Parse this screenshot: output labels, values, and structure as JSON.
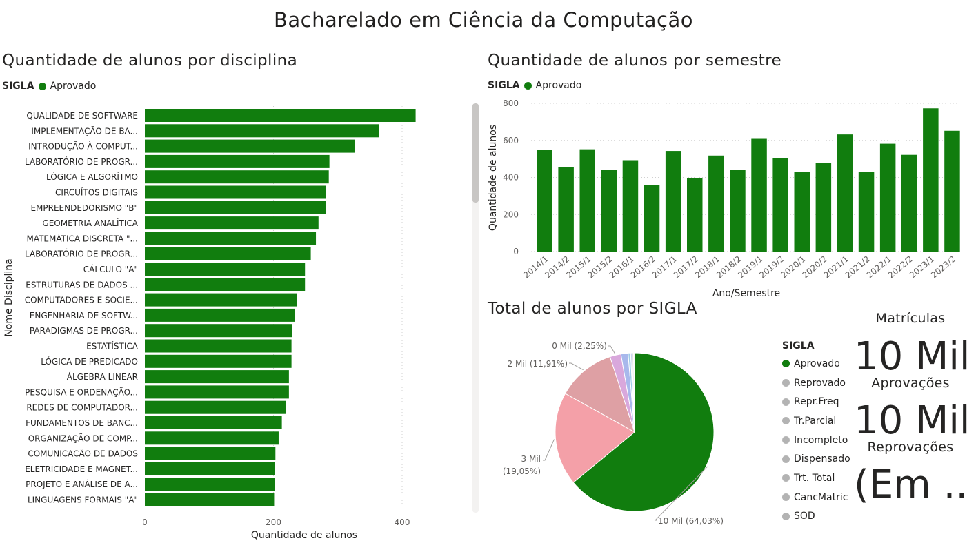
{
  "page": {
    "title": "Bacharelado em Ciência da Computação"
  },
  "colors": {
    "aprovado": "#117d0e",
    "gridline": "#d0d0d0",
    "scroll_thumb": "#c8c6c4"
  },
  "bar_by_discipline": {
    "title": "Quantidade de alunos por disciplina",
    "legend_title": "SIGLA",
    "legend_item": "Aprovado"
  },
  "bar_by_semester": {
    "title": "Quantidade de alunos por semestre",
    "legend_title": "SIGLA",
    "legend_item": "Aprovado"
  },
  "pie": {
    "title": "Total de alunos por SIGLA",
    "legend_title": "SIGLA",
    "labels": [
      {
        "value": "0 Mil",
        "pct": "(2,25%)"
      },
      {
        "value": "2 Mil",
        "pct": "(11,91%)"
      },
      {
        "value": "3 Mil",
        "pct": "(19,05%)"
      },
      {
        "value": "10 Mil",
        "pct": "(64,03%)"
      }
    ]
  },
  "cards": {
    "matriculas_label": "Matrículas",
    "aprovacoes_value": "10 Mil",
    "aprovacoes_label": "Aprovações",
    "reprovacoes_value": "10 Mil",
    "reprovacoes_label": "Reprovações",
    "third_value": "(Em ..."
  },
  "chart_data": [
    {
      "type": "bar",
      "orientation": "horizontal",
      "title": "Quantidade de alunos por disciplina",
      "xlabel": "Quantidade de alunos",
      "ylabel": "Nome Disciplina",
      "xlim": [
        0,
        430
      ],
      "x_ticks": [
        "0",
        "200",
        "400"
      ],
      "grid": true,
      "legend": {
        "title": "SIGLA",
        "position": "top-left"
      },
      "categories": [
        "QUALIDADE DE SOFTWARE",
        "IMPLEMENTAÇÃO DE BA...",
        "INTRODUÇÃO À COMPUT...",
        "LABORATÓRIO DE PROGR...",
        "LÓGICA E ALGORÍTMO",
        "CIRCUÍTOS DIGITAIS",
        "EMPREENDEDORISMO \"B\"",
        "GEOMETRIA ANALÍTICA",
        "MATEMÁTICA DISCRETA \"...",
        "LABORATÓRIO DE PROGR...",
        "CÁLCULO \"A\"",
        "ESTRUTURAS DE DADOS ...",
        "COMPUTADORES E SOCIE...",
        "ENGENHARIA DE SOFTW...",
        "PARADIGMAS DE PROGR...",
        "ESTATÍSTICA",
        "LÓGICA DE PREDICADO",
        "ÁLGEBRA LINEAR",
        "PESQUISA E ORDENAÇÃO...",
        "REDES DE COMPUTADOR...",
        "FUNDAMENTOS DE BANC...",
        "ORGANIZAÇÃO DE COMP...",
        "COMUNICAÇÃO DE DADOS",
        "ELETRICIDADE E MAGNET...",
        "PROJETO E ANÁLISE DE A...",
        "LINGUAGENS FORMAIS \"A\""
      ],
      "series": [
        {
          "name": "Aprovado",
          "values": [
            421,
            364,
            326,
            287,
            286,
            282,
            281,
            270,
            266,
            258,
            249,
            249,
            236,
            233,
            229,
            228,
            228,
            224,
            224,
            219,
            213,
            208,
            203,
            202,
            202,
            201
          ]
        }
      ]
    },
    {
      "type": "bar",
      "title": "Quantidade de alunos por semestre",
      "xlabel": "Ano/Semestre",
      "ylabel": "Quantidade de alunos",
      "ylim": [
        0,
        800
      ],
      "y_ticks": [
        "0",
        "200",
        "400",
        "600",
        "800"
      ],
      "grid": true,
      "legend": {
        "title": "SIGLA",
        "position": "top-left"
      },
      "categories": [
        "2014/1",
        "2014/2",
        "2015/1",
        "2015/2",
        "2016/1",
        "2016/2",
        "2017/1",
        "2017/2",
        "2018/1",
        "2018/2",
        "2019/1",
        "2019/2",
        "2020/1",
        "2020/2",
        "2021/1",
        "2021/2",
        "2022/1",
        "2022/2",
        "2023/1",
        "2023/2"
      ],
      "series": [
        {
          "name": "Aprovado",
          "values": [
            548,
            456,
            552,
            441,
            493,
            358,
            543,
            398,
            518,
            441,
            612,
            505,
            430,
            478,
            632,
            430,
            582,
            522,
            773,
            652
          ]
        }
      ]
    },
    {
      "type": "pie",
      "title": "Total de alunos por SIGLA",
      "legend": {
        "title": "SIGLA",
        "position": "right"
      },
      "slices": [
        {
          "name": "Aprovado",
          "percent": 64.03,
          "color": "#117d0e",
          "label": "10 Mil (64,03%)"
        },
        {
          "name": "Reprovado",
          "percent": 19.05,
          "color": "#f4a0a8",
          "label": "3 Mil (19,05%)"
        },
        {
          "name": "Repr.Freq",
          "percent": 11.91,
          "color": "#dea0a4",
          "label": "2 Mil (11,91%)"
        },
        {
          "name": "Tr.Parcial",
          "percent": 2.25,
          "color": "#d9a8dc",
          "label": "0 Mil (2,25%)"
        },
        {
          "name": "Incompleto",
          "percent": 1.46,
          "color": "#a8b8ec",
          "label": ""
        },
        {
          "name": "Dispensado",
          "percent": 0.5,
          "color": "#9ecbe8",
          "label": ""
        },
        {
          "name": "Trt. Total",
          "percent": 0.3,
          "color": "#c9d6f2",
          "label": ""
        },
        {
          "name": "CancMatric",
          "percent": 0.3,
          "color": "#e1e1e1",
          "label": ""
        },
        {
          "name": "SOD",
          "percent": 0.2,
          "color": "#eeeeee",
          "label": ""
        }
      ],
      "legend_items": [
        {
          "name": "Aprovado",
          "color": "#117d0e"
        },
        {
          "name": "Reprovado",
          "color": "#b3b3b3"
        },
        {
          "name": "Repr.Freq",
          "color": "#b3b3b3"
        },
        {
          "name": "Tr.Parcial",
          "color": "#b3b3b3"
        },
        {
          "name": "Incompleto",
          "color": "#b3b3b3"
        },
        {
          "name": "Dispensado",
          "color": "#b3b3b3"
        },
        {
          "name": "Trt. Total",
          "color": "#b3b3b3"
        },
        {
          "name": "CancMatric",
          "color": "#b3b3b3"
        },
        {
          "name": "SOD",
          "color": "#b3b3b3"
        }
      ]
    }
  ]
}
